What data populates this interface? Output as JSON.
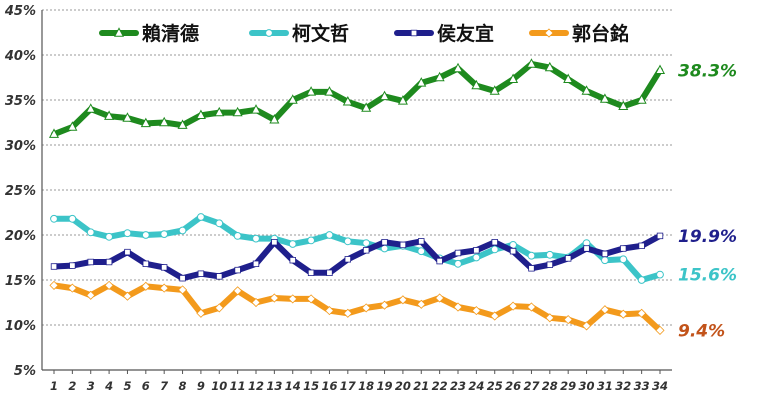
{
  "chart_data": {
    "type": "line",
    "title": "",
    "xlabel": "",
    "ylabel": "",
    "x": [
      1,
      2,
      3,
      4,
      5,
      6,
      7,
      8,
      9,
      10,
      11,
      12,
      13,
      14,
      15,
      16,
      17,
      18,
      19,
      20,
      21,
      22,
      23,
      24,
      25,
      26,
      27,
      28,
      29,
      30,
      31,
      32,
      33,
      34
    ],
    "ylim": [
      5,
      45
    ],
    "yticks": [
      "5%",
      "10%",
      "15%",
      "20%",
      "25%",
      "30%",
      "35%",
      "40%",
      "45%"
    ],
    "grid": true,
    "legend_position": "top",
    "series": [
      {
        "name": "賴清德",
        "color": "#1e8a1e",
        "marker": "triangle",
        "end_label": "38.3%",
        "values": [
          31.2,
          32.0,
          34.0,
          33.2,
          33.0,
          32.4,
          32.5,
          32.2,
          33.3,
          33.6,
          33.6,
          33.9,
          32.8,
          35.0,
          35.9,
          35.9,
          34.8,
          34.1,
          35.4,
          34.9,
          36.9,
          37.5,
          38.5,
          36.6,
          36.0,
          37.3,
          39.0,
          38.6,
          37.3,
          36.0,
          35.1,
          34.3,
          35.0,
          38.3
        ]
      },
      {
        "name": "柯文哲",
        "color": "#3cc4c8",
        "marker": "circle",
        "end_label": "15.6%",
        "values": [
          21.8,
          21.8,
          20.3,
          19.8,
          20.2,
          20.0,
          20.1,
          20.5,
          22.0,
          21.3,
          19.9,
          19.6,
          19.6,
          19.0,
          19.4,
          20.0,
          19.3,
          19.1,
          18.5,
          18.8,
          18.2,
          17.4,
          16.8,
          17.5,
          18.4,
          18.9,
          17.7,
          17.8,
          17.5,
          19.1,
          17.2,
          17.3,
          15.0,
          15.6
        ]
      },
      {
        "name": "侯友宜",
        "color": "#1f1f8c",
        "marker": "square",
        "end_label": "19.9%",
        "values": [
          16.5,
          16.6,
          17.0,
          17.0,
          18.1,
          16.8,
          16.4,
          15.2,
          15.7,
          15.4,
          16.1,
          16.8,
          19.2,
          17.2,
          15.8,
          15.8,
          17.3,
          18.3,
          19.2,
          18.9,
          19.3,
          17.1,
          18.0,
          18.3,
          19.2,
          18.2,
          16.3,
          16.7,
          17.4,
          18.5,
          17.9,
          18.5,
          18.8,
          19.9
        ]
      },
      {
        "name": "郭台銘",
        "color": "#f39a1c",
        "marker": "diamond",
        "end_label": "9.4%",
        "end_label_color": "#c2531a",
        "values": [
          14.4,
          14.1,
          13.3,
          14.4,
          13.2,
          14.3,
          14.1,
          13.9,
          11.3,
          11.9,
          13.8,
          12.5,
          13.0,
          12.9,
          12.9,
          11.6,
          11.3,
          11.9,
          12.2,
          12.8,
          12.3,
          13.0,
          12.0,
          11.6,
          11.0,
          12.1,
          12.0,
          10.8,
          10.6,
          9.9,
          11.7,
          11.2,
          11.3,
          9.4
        ]
      }
    ]
  }
}
